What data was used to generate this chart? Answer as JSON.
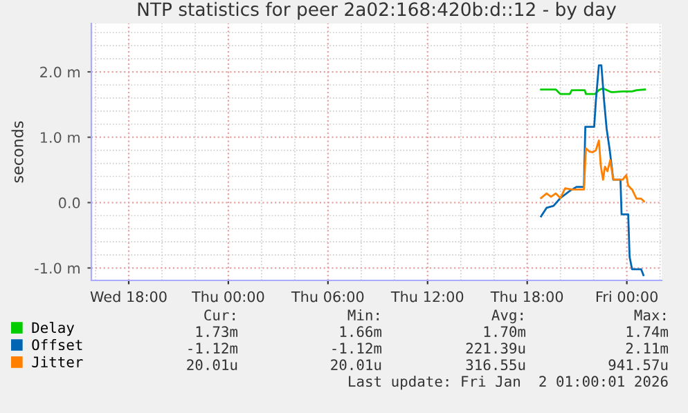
{
  "chart_data": {
    "type": "line",
    "title": "NTP statistics for peer 2a02:168:420b:d::12 - by day",
    "ylabel": "seconds",
    "xlim": [
      "2025-12-31T15:45",
      "2026-01-02T02:06"
    ],
    "ylim": [
      -1.19,
      2.74
    ],
    "xticks": [
      {
        "value": "2025-12-31T18:00",
        "label": "Wed 18:00"
      },
      {
        "value": "2026-01-01T00:00",
        "label": "Thu 00:00"
      },
      {
        "value": "2026-01-01T06:00",
        "label": "Thu 06:00"
      },
      {
        "value": "2026-01-01T12:00",
        "label": "Thu 12:00"
      },
      {
        "value": "2026-01-01T18:00",
        "label": "Thu 18:00"
      },
      {
        "value": "2026-01-02T00:00",
        "label": "Fri 00:00"
      }
    ],
    "yticks": [
      {
        "value": -1,
        "label": "-1.0 m"
      },
      {
        "value": 0,
        "label": "0.0"
      },
      {
        "value": 1,
        "label": "1.0 m"
      },
      {
        "value": 2,
        "label": "2.0 m"
      }
    ],
    "grid": true,
    "legend": "bottom left",
    "marker": "none",
    "line_style": "solid",
    "series": [
      {
        "name": "Delay",
        "color": "#00cc00",
        "x": [
          "2026-01-01T18:50",
          "2026-01-01T19:43",
          "2026-01-01T20:00",
          "2026-01-01T20:34",
          "2026-01-01T20:41",
          "2026-01-01T21:28",
          "2026-01-01T21:32",
          "2026-01-01T22:05",
          "2026-01-01T22:19",
          "2026-01-01T22:28",
          "2026-01-01T22:38",
          "2026-01-01T23:04",
          "2026-01-01T23:11",
          "2026-01-01T23:45",
          "2026-01-01T23:58",
          "2026-01-02T00:19",
          "2026-01-02T00:35",
          "2026-01-02T01:05"
        ],
        "values": [
          1.73,
          1.73,
          1.66,
          1.66,
          1.72,
          1.72,
          1.66,
          1.66,
          1.72,
          1.74,
          1.74,
          1.69,
          1.69,
          1.7,
          1.7,
          1.7,
          1.72,
          1.73
        ]
      },
      {
        "name": "Offset",
        "color": "#0066b3",
        "x": [
          "2026-01-01T18:50",
          "2026-01-01T19:10",
          "2026-01-01T19:35",
          "2026-01-01T20:00",
          "2026-01-01T20:34",
          "2026-01-01T20:58",
          "2026-01-01T21:25",
          "2026-01-01T21:30",
          "2026-01-01T22:02",
          "2026-01-01T22:08",
          "2026-01-01T22:19",
          "2026-01-01T22:28",
          "2026-01-01T22:38",
          "2026-01-01T22:47",
          "2026-01-01T22:58",
          "2026-01-01T23:11",
          "2026-01-01T23:37",
          "2026-01-01T23:41",
          "2026-01-02T00:05",
          "2026-01-02T00:10",
          "2026-01-02T00:19",
          "2026-01-02T00:52",
          "2026-01-02T01:00"
        ],
        "values": [
          -0.21,
          -0.08,
          -0.05,
          0.07,
          0.18,
          0.24,
          0.24,
          1.16,
          1.16,
          1.55,
          2.1,
          2.1,
          1.55,
          1.13,
          0.81,
          0.35,
          0.35,
          -0.18,
          -0.18,
          -0.83,
          -1.02,
          -1.02,
          -1.11
        ]
      },
      {
        "name": "Jitter",
        "color": "#ff8000",
        "x": [
          "2026-01-01T18:50",
          "2026-01-01T19:10",
          "2026-01-01T19:26",
          "2026-01-01T19:43",
          "2026-01-01T20:00",
          "2026-01-01T20:17",
          "2026-01-01T20:41",
          "2026-01-01T21:07",
          "2026-01-01T21:25",
          "2026-01-01T21:32",
          "2026-01-01T21:45",
          "2026-01-01T21:56",
          "2026-01-01T22:08",
          "2026-01-01T22:19",
          "2026-01-01T22:26",
          "2026-01-01T22:34",
          "2026-01-01T22:41",
          "2026-01-01T22:50",
          "2026-01-01T23:00",
          "2026-01-01T23:11",
          "2026-01-01T23:28",
          "2026-01-01T23:45",
          "2026-01-01T23:58",
          "2026-01-02T00:05",
          "2026-01-02T00:19",
          "2026-01-02T00:35",
          "2026-01-02T00:52",
          "2026-01-02T01:02"
        ],
        "values": [
          0.07,
          0.14,
          0.09,
          0.14,
          0.07,
          0.22,
          0.2,
          0.2,
          0.2,
          0.83,
          0.78,
          0.77,
          0.8,
          0.95,
          0.56,
          0.35,
          0.55,
          0.48,
          0.65,
          0.35,
          0.35,
          0.35,
          0.42,
          0.26,
          0.2,
          0.06,
          0.06,
          0.02
        ]
      }
    ],
    "annotations": [
      "Cur:",
      "Min:",
      "Avg:",
      "Max:",
      "1.73m",
      "1.66m",
      "1.70m",
      "1.74m",
      "-1.12m",
      "-1.12m",
      "221.39u",
      "2.11m",
      "20.01u",
      "20.01u",
      "316.55u",
      "941.57u",
      "Last update: Fri Jan  2 01:00:01 2026"
    ]
  }
}
